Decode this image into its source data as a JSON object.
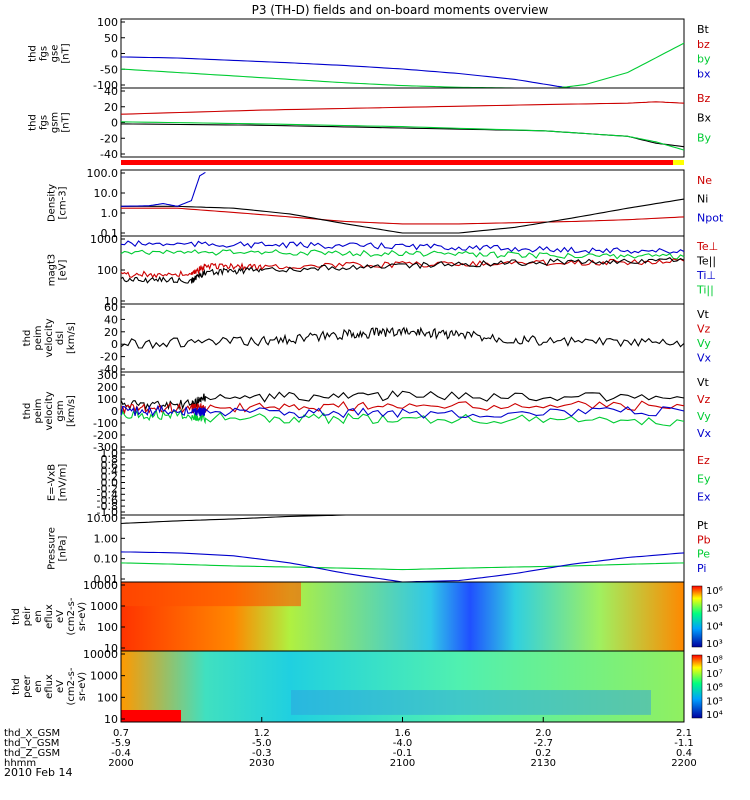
{
  "title": "P3 (TH-D) fields and on-board moments overview",
  "date_label": "2010 Feb 14",
  "colors": {
    "black": "#000000",
    "red": "#cc0000",
    "green": "#00cc33",
    "blue": "#0000cc",
    "yellow": "#ffff00"
  },
  "chart_data": [
    {
      "id": "fgs-gse",
      "type": "line",
      "ylabel_lines": [
        "thd",
        "fgs",
        "gse",
        "[nT]"
      ],
      "ylim": [
        -100,
        100
      ],
      "yticks": [
        "100",
        "50",
        "0",
        "-50",
        "-100"
      ],
      "legend": [
        {
          "label": "Bt",
          "color": "black"
        },
        {
          "label": "bz",
          "color": "red"
        },
        {
          "label": "by",
          "color": "green"
        },
        {
          "label": "bx",
          "color": "blue"
        }
      ],
      "series": [
        {
          "name": "bx",
          "color": "blue",
          "x": [
            2000,
            2020,
            2040,
            2060,
            2080,
            2100,
            2120,
            2140,
            2155,
            2160
          ],
          "y": [
            -10,
            -13,
            -20,
            -27,
            -35,
            -45,
            -58,
            -75,
            -95,
            -100
          ]
        },
        {
          "name": "by",
          "color": "green",
          "x": [
            2000,
            2020,
            2040,
            2060,
            2080,
            2100,
            2120,
            2140,
            2155,
            2165,
            2180,
            2200
          ],
          "y": [
            -45,
            -55,
            -65,
            -75,
            -85,
            -93,
            -98,
            -100,
            -100,
            -90,
            -55,
            30
          ]
        }
      ]
    },
    {
      "id": "fgs-gsm",
      "type": "line",
      "ylabel_lines": [
        "thd",
        "fgs",
        "gsm",
        "[nT]"
      ],
      "ylim": [
        -50,
        50
      ],
      "yticks": [
        "40",
        "20",
        "0",
        "-20",
        "-40"
      ],
      "legend": [
        {
          "label": "Bz",
          "color": "red"
        },
        {
          "label": "Bx",
          "color": "black"
        },
        {
          "label": "By",
          "color": "green"
        }
      ],
      "series": [
        {
          "name": "Bz",
          "color": "red",
          "x": [
            2000,
            2050,
            2100,
            2150,
            2180,
            2190,
            2200
          ],
          "y": [
            12,
            18,
            22,
            26,
            28,
            30,
            28
          ]
        },
        {
          "name": "Bx",
          "color": "black",
          "x": [
            2000,
            2050,
            2100,
            2150,
            2180,
            2190,
            2200
          ],
          "y": [
            -2,
            -4,
            -8,
            -12,
            -20,
            -30,
            -35
          ]
        },
        {
          "name": "By",
          "color": "green",
          "x": [
            2000,
            2050,
            2100,
            2150,
            2180,
            2190,
            2200
          ],
          "y": [
            1,
            -2,
            -6,
            -12,
            -20,
            -28,
            -40
          ]
        }
      ]
    },
    {
      "id": "density",
      "type": "line",
      "log": true,
      "ylabel_lines": [
        "Density",
        "[cm-3]"
      ],
      "ylim": [
        0.07,
        200
      ],
      "yticks": [
        "100.0",
        "10.0",
        "1.0",
        "0.1"
      ],
      "legend": [
        {
          "label": "Ne",
          "color": "red"
        },
        {
          "label": "Ni",
          "color": "black"
        },
        {
          "label": "Npot",
          "color": "blue"
        }
      ],
      "series": [
        {
          "name": "Ne",
          "color": "red",
          "x": [
            2000,
            2020,
            2040,
            2060,
            2080,
            2100,
            2120,
            2140,
            2160,
            2180,
            2200
          ],
          "y": [
            2,
            2,
            1.2,
            0.7,
            0.4,
            0.3,
            0.3,
            0.35,
            0.4,
            0.5,
            0.7
          ]
        },
        {
          "name": "Ni",
          "color": "black",
          "x": [
            2000,
            2020,
            2040,
            2060,
            2080,
            2100,
            2120,
            2140,
            2160,
            2180,
            2200
          ],
          "y": [
            2.5,
            2.5,
            2,
            1,
            0.3,
            0.1,
            0.1,
            0.2,
            0.6,
            2,
            6
          ]
        },
        {
          "name": "Npot",
          "color": "blue",
          "x": [
            2000,
            2010,
            2015,
            2020,
            2025,
            2028,
            2030
          ],
          "y": [
            2.5,
            2.7,
            3.5,
            2.5,
            5,
            100,
            150
          ]
        }
      ]
    },
    {
      "id": "temperature",
      "type": "line",
      "log": true,
      "ylabel_lines": [
        "magt3",
        "[eV]"
      ],
      "ylim": [
        10,
        2000
      ],
      "yticks": [
        "1000",
        "100",
        "10"
      ],
      "legend": [
        {
          "label": "Te⊥",
          "color": "red"
        },
        {
          "label": "Te||",
          "color": "black"
        },
        {
          "label": "Ti⊥",
          "color": "blue"
        },
        {
          "label": "Ti||",
          "color": "green"
        }
      ],
      "series": [
        {
          "name": "Ti⊥",
          "color": "blue",
          "x": [
            2000,
            2050,
            2100,
            2150,
            2200
          ],
          "y": [
            1100,
            1000,
            900,
            700,
            600
          ]
        },
        {
          "name": "Ti||",
          "color": "green",
          "x": [
            2000,
            2050,
            2100,
            2150,
            2200
          ],
          "y": [
            600,
            550,
            500,
            450,
            400
          ]
        },
        {
          "name": "Te⊥",
          "color": "red",
          "x": [
            2000,
            2025,
            2030,
            2050,
            2100,
            2150,
            2200
          ],
          "y": [
            100,
            100,
            200,
            180,
            220,
            250,
            280
          ]
        },
        {
          "name": "Te||",
          "color": "black",
          "x": [
            2000,
            2025,
            2030,
            2050,
            2100,
            2150,
            2200
          ],
          "y": [
            70,
            60,
            120,
            140,
            200,
            260,
            300
          ]
        }
      ]
    },
    {
      "id": "velocity-dsl",
      "type": "line",
      "ylabel_lines": [
        "thd",
        "peim",
        "velocity",
        "dsl",
        "[km/s]"
      ],
      "ylim": [
        -40,
        60
      ],
      "yticks": [
        "60",
        "40",
        "20",
        "0",
        "-20",
        "-40"
      ],
      "legend": [
        {
          "label": "Vt",
          "color": "black"
        },
        {
          "label": "Vz",
          "color": "red"
        },
        {
          "label": "Vy",
          "color": "green"
        },
        {
          "label": "Vx",
          "color": "blue"
        }
      ],
      "series": [
        {
          "name": "Vt",
          "color": "black",
          "x": [
            2000,
            2050,
            2080,
            2100,
            2120,
            2150,
            2200
          ],
          "y": [
            2,
            5,
            15,
            20,
            15,
            5,
            2
          ]
        }
      ]
    },
    {
      "id": "velocity-gsm",
      "type": "line",
      "ylabel_lines": [
        "thd",
        "peim",
        "velocity",
        "gsm",
        "[km/s]"
      ],
      "ylim": [
        -300,
        300
      ],
      "yticks": [
        "300",
        "200",
        "100",
        "0",
        "-100",
        "-200",
        "-300"
      ],
      "legend": [
        {
          "label": "Vt",
          "color": "black"
        },
        {
          "label": "Vz",
          "color": "red"
        },
        {
          "label": "Vy",
          "color": "green"
        },
        {
          "label": "Vx",
          "color": "blue"
        }
      ],
      "series": [
        {
          "name": "Vt",
          "color": "black",
          "x": [
            2000,
            2025,
            2030,
            2100,
            2200
          ],
          "y": [
            50,
            50,
            100,
            120,
            100
          ]
        },
        {
          "name": "Vz",
          "color": "red",
          "x": [
            2000,
            2025,
            2030,
            2100,
            2200
          ],
          "y": [
            20,
            20,
            30,
            40,
            40
          ]
        },
        {
          "name": "Vy",
          "color": "green",
          "x": [
            2000,
            2025,
            2030,
            2100,
            2200
          ],
          "y": [
            -30,
            -30,
            -50,
            -60,
            -80
          ]
        },
        {
          "name": "Vx",
          "color": "blue",
          "x": [
            2000,
            2025,
            2030,
            2100,
            2200
          ],
          "y": [
            0,
            0,
            -10,
            -20,
            0
          ]
        }
      ]
    },
    {
      "id": "efield",
      "type": "line",
      "ylabel_lines": [
        "E=-VxB",
        "[mV/m]"
      ],
      "ylim": [
        -1,
        1
      ],
      "yticks": [
        "1.0",
        "0.8",
        "0.6",
        "0.4",
        "0.2",
        "0.0",
        "-0.2",
        "-0.4",
        "-0.6",
        "-0.8",
        "-1.0"
      ],
      "legend": [
        {
          "label": "Ez",
          "color": "red"
        },
        {
          "label": "Ey",
          "color": "green"
        },
        {
          "label": "Ex",
          "color": "blue"
        }
      ],
      "series": []
    },
    {
      "id": "pressure",
      "type": "line",
      "log": true,
      "ylabel_lines": [
        "Pressure",
        "[nPa]"
      ],
      "ylim": [
        0.005,
        30
      ],
      "yticks": [
        "10.00",
        "1.00",
        "0.10",
        "0.01"
      ],
      "legend": [
        {
          "label": "Pt",
          "color": "black"
        },
        {
          "label": "Pb",
          "color": "red"
        },
        {
          "label": "Pe",
          "color": "green"
        },
        {
          "label": "Pi",
          "color": "blue"
        }
      ],
      "series": [
        {
          "name": "Pt",
          "color": "black",
          "x": [
            2000,
            2020,
            2040,
            2060,
            2080
          ],
          "y": [
            10,
            14,
            18,
            25,
            30
          ]
        },
        {
          "name": "Pe",
          "color": "green",
          "x": [
            2000,
            2020,
            2040,
            2060,
            2080,
            2100,
            2120,
            2140,
            2160,
            2180,
            2200
          ],
          "y": [
            0.06,
            0.05,
            0.04,
            0.035,
            0.03,
            0.025,
            0.03,
            0.035,
            0.04,
            0.05,
            0.06
          ]
        },
        {
          "name": "Pi",
          "color": "blue",
          "x": [
            2000,
            2020,
            2040,
            2060,
            2080,
            2100,
            2120,
            2140,
            2160,
            2180,
            2200
          ],
          "y": [
            0.25,
            0.22,
            0.15,
            0.06,
            0.015,
            0.005,
            0.006,
            0.015,
            0.05,
            0.12,
            0.22
          ]
        }
      ]
    },
    {
      "id": "ion-spec",
      "type": "heatmap",
      "ylabel_lines": [
        "thd",
        "peir",
        "en",
        "eflux",
        "eV",
        "(cm2-s-",
        "sr-eV)"
      ],
      "ylim": [
        7,
        20000
      ],
      "yticks": [
        "10000",
        "1000",
        "100",
        "10"
      ],
      "colorbar_ticks": [
        "10⁶",
        "10⁵",
        "10⁴",
        "10³"
      ]
    },
    {
      "id": "elec-spec",
      "type": "heatmap",
      "ylabel_lines": [
        "thd",
        "peer",
        "en",
        "eflux",
        "eV",
        "(cm2-s-",
        "sr-eV)"
      ],
      "ylim": [
        7,
        20000
      ],
      "yticks": [
        "10000",
        "1000",
        "100",
        "10"
      ],
      "colorbar_ticks": [
        "10⁸",
        "10⁷",
        "10⁶",
        "10⁵",
        "10⁴"
      ]
    }
  ],
  "x_axis": {
    "rows": [
      {
        "label": "thd_X_GSM",
        "values": [
          "0.7",
          "1.2",
          "1.6",
          "2.0",
          "2.1"
        ]
      },
      {
        "label": "thd_Y_GSM",
        "values": [
          "-5.9",
          "-5.0",
          "-4.0",
          "-2.7",
          "-1.1"
        ]
      },
      {
        "label": "thd_Z_GSM",
        "values": [
          "-0.4",
          "-0.3",
          "-0.1",
          "0.2",
          "0.4"
        ]
      },
      {
        "label": "hhmm",
        "values": [
          "2000",
          "2030",
          "2100",
          "2130",
          "2200"
        ]
      }
    ]
  }
}
